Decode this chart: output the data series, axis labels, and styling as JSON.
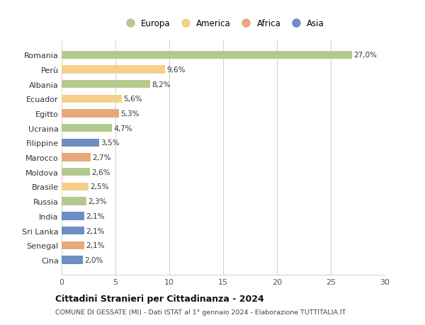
{
  "countries": [
    "Romania",
    "Perù",
    "Albania",
    "Ecuador",
    "Egitto",
    "Ucraina",
    "Filippine",
    "Marocco",
    "Moldova",
    "Brasile",
    "Russia",
    "India",
    "Sri Lanka",
    "Senegal",
    "Cina"
  ],
  "values": [
    27.0,
    9.6,
    8.2,
    5.6,
    5.3,
    4.7,
    3.5,
    2.7,
    2.6,
    2.5,
    2.3,
    2.1,
    2.1,
    2.1,
    2.0
  ],
  "labels": [
    "27,0%",
    "9,6%",
    "8,2%",
    "5,6%",
    "5,3%",
    "4,7%",
    "3,5%",
    "2,7%",
    "2,6%",
    "2,5%",
    "2,3%",
    "2,1%",
    "2,1%",
    "2,1%",
    "2,0%"
  ],
  "continents": [
    "Europa",
    "America",
    "Europa",
    "America",
    "Africa",
    "Europa",
    "Asia",
    "Africa",
    "Europa",
    "America",
    "Europa",
    "Asia",
    "Asia",
    "Africa",
    "Asia"
  ],
  "colors": {
    "Europa": "#b5c98e",
    "America": "#f5d08c",
    "Africa": "#e8a87c",
    "Asia": "#6b8fc2"
  },
  "legend_order": [
    "Europa",
    "America",
    "Africa",
    "Asia"
  ],
  "title": "Cittadini Stranieri per Cittadinanza - 2024",
  "subtitle": "COMUNE DI GESSATE (MI) - Dati ISTAT al 1° gennaio 2024 - Elaborazione TUTTITALIA.IT",
  "xlim": [
    0,
    30
  ],
  "xticks": [
    0,
    5,
    10,
    15,
    20,
    25,
    30
  ],
  "background_color": "#ffffff",
  "grid_color": "#d0d0d0"
}
